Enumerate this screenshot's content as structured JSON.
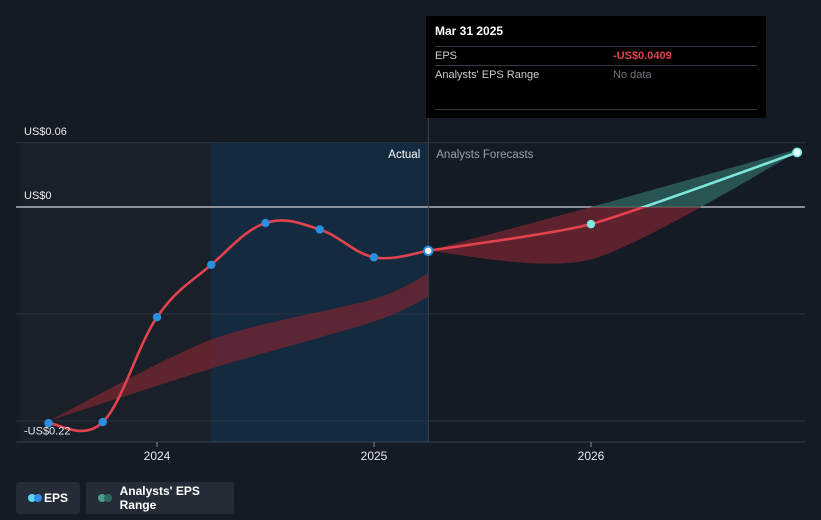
{
  "tooltip": {
    "date": "Mar 31 2025",
    "rows": [
      {
        "label": "EPS",
        "value": "-US$0.0409"
      },
      {
        "label": "Analysts' EPS Range",
        "value": "No data"
      }
    ]
  },
  "legend": [
    {
      "label": "EPS",
      "colors": [
        "#5fd3f3",
        "#2f8ee6"
      ]
    },
    {
      "label": "Analysts' EPS Range",
      "colors": [
        "#4e9c8f",
        "#2c6b64"
      ]
    }
  ],
  "colors": {
    "background": "#151b24",
    "eps_line": "#e2424d",
    "forecast_positive": "#7ee8dc",
    "point": "#2b8fe0",
    "range_negative": "#7a2530",
    "range_positive": "#2b5e59"
  },
  "chart_data": {
    "type": "line",
    "title": "",
    "xlabel": "",
    "ylabel": "",
    "x_ticks": [
      {
        "label": "2024",
        "x": 2024.0
      },
      {
        "label": "2025",
        "x": 2025.0
      },
      {
        "label": "2026",
        "x": 2026.0
      }
    ],
    "y_labels": [
      {
        "label": "US$0.06",
        "y": 0.06
      },
      {
        "label": "US$0",
        "y": 0.0
      },
      {
        "label": "-US$0.22",
        "y": -0.22
      }
    ],
    "ylim": [
      -0.22,
      0.06
    ],
    "xlim": [
      2023.37,
      2026.95
    ],
    "gridlines_y": [
      -0.2,
      -0.1,
      0.0,
      0.06
    ],
    "sections": {
      "actual": "Actual",
      "forecast": "Analysts Forecasts"
    },
    "past_region_start": 2024.25,
    "divider_x": 2025.25,
    "series": [
      {
        "name": "EPS",
        "points": [
          {
            "x": 2023.5,
            "y": -0.202
          },
          {
            "x": 2023.75,
            "y": -0.201
          },
          {
            "x": 2024.0,
            "y": -0.103
          },
          {
            "x": 2024.25,
            "y": -0.054
          },
          {
            "x": 2024.5,
            "y": -0.015
          },
          {
            "x": 2024.75,
            "y": -0.021
          },
          {
            "x": 2025.0,
            "y": -0.047
          },
          {
            "x": 2025.25,
            "y": -0.0409
          }
        ]
      },
      {
        "name": "EPS Forecast",
        "points": [
          {
            "x": 2025.25,
            "y": -0.0409
          },
          {
            "x": 2026.0,
            "y": -0.016
          },
          {
            "x": 2026.95,
            "y": 0.051
          }
        ]
      }
    ],
    "range_bands": [
      {
        "name": "Analysts' EPS Range (past)",
        "x": [
          2023.5,
          2024.25,
          2025.0,
          2025.25
        ],
        "upper": [
          -0.2,
          -0.124,
          -0.086,
          -0.062
        ],
        "lower": [
          -0.2,
          -0.151,
          -0.107,
          -0.084
        ]
      },
      {
        "name": "Analysts' EPS Range (forecast)",
        "x": [
          2025.25,
          2026.0,
          2026.95
        ],
        "upper": [
          -0.0409,
          0.0,
          0.054
        ],
        "lower": [
          -0.0409,
          -0.049,
          0.051
        ]
      }
    ]
  }
}
